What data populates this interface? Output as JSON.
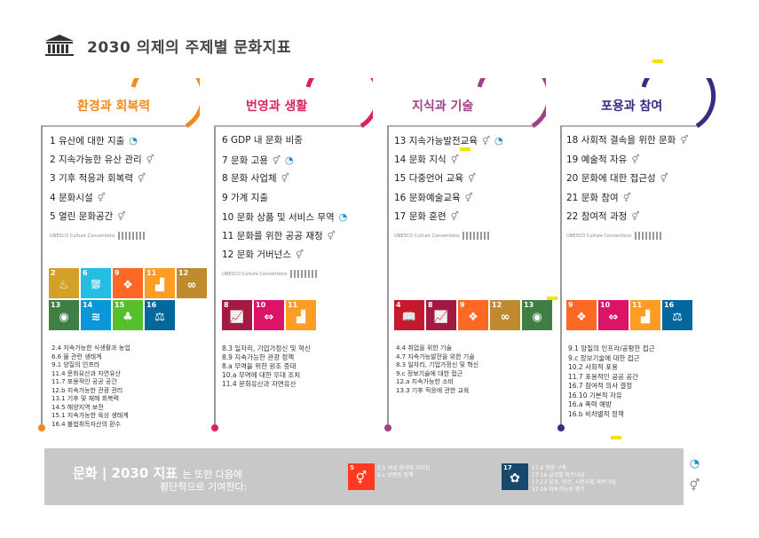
{
  "page": {
    "title": "2030 의제의 주제별 문화지표"
  },
  "colors": {
    "orange": "#f08a1c",
    "red": "#d8245b",
    "purple": "#a23f86",
    "navy": "#3b2a80"
  },
  "unesco_label": "UNESCO Culture Conventions",
  "columns": [
    {
      "title": "환경과 회복력",
      "items": [
        "1 유산에 대한 지출",
        "2 지속가능한 유산 관리",
        "3 기후 적응과 회복력",
        "4 문화시설",
        "5 열린 문화공간"
      ],
      "sdgs": [
        "2",
        "6",
        "9",
        "11",
        "12",
        "13",
        "14",
        "15",
        "16"
      ],
      "targets": [
        "2.4 지속가능한 식생활과 농업",
        "6.6 물 관련 생태계",
        "9.1 양질의 인프라",
        "11.4 문화유산과 자연유산",
        "11.7 포용적인 공공 공간",
        "12.b 지속가능한 관광 관리",
        "13.1 기후 및 재해 회복력",
        "14.5 해양지역 보전",
        "15.1 지속가능한 육상 생태계",
        "16.4 불법취득자산의 환수"
      ]
    },
    {
      "title": "번영과 생활",
      "items": [
        "6  GDP 내 문화 비중",
        "7 문화 고용",
        "8 문화 사업체",
        "9 가계 지출",
        "10 문화 상품 및 서비스 무역",
        "11 문화를 위한 공공 재정",
        "12 문화 거버넌스"
      ],
      "sdgs": [
        "8",
        "10",
        "11"
      ],
      "targets": [
        "8.3 일자리, 기업가정신 및 혁신",
        "8.9 지속가능한 관광 정책",
        "8.a 무역을 위한 원조 증대",
        "10.a 무역에 대한 우대 조치",
        "11.4 문화유산과 자연유산"
      ]
    },
    {
      "title": "지식과 기술",
      "items": [
        "13  지속가능발전교육",
        "14 문화 지식",
        "15 다중언어 교육",
        "16 문화예술교육",
        "17 문화 훈련"
      ],
      "sdgs": [
        "4",
        "8",
        "9",
        "12",
        "13"
      ],
      "targets": [
        "4.4 취업을 위한 기술",
        "4.7 지속가능발전을 위한 기술",
        "8.3 일자리, 기업가정신 및 혁신",
        "9.c 정보기술에 대한 접근",
        "12.a 지속가능한 소비",
        "13.3 기후 적응에 관한 교육"
      ]
    },
    {
      "title": "포용과 참여",
      "items": [
        "18  사회적 결속을 위한 문화",
        "19 예술적 자유",
        "20 문화에 대한 접근성",
        "21 문화 참여",
        "22 참여적 과정"
      ],
      "sdgs": [
        "9",
        "10",
        "11",
        "16"
      ],
      "targets": [
        "9.1 양질의 인프라/공평한 접근",
        "9.c 정보기술에 대한 접근",
        "10.2 사회적 포용",
        "11.7 포용적인 공공 공간",
        "16.7 참여적 의사 결정",
        "16.10 기본적 자유",
        "16.a 폭력 예방",
        "16.b 비차별적 정책"
      ]
    }
  ],
  "footer": {
    "main": "문화 | 2030 지표",
    "main_tail": "는 또한 다음에",
    "sub": "횡단적으로 기여한다:",
    "sdg5_targets": [
      "5.5 여성 참여와 리더십",
      "5.c 성평등 정책"
    ],
    "sdg17_targets": [
      "17.9 역량 구축",
      "17.14 글로벌 파트너십",
      "17.17 공공, 민간, 시민사회 파트너십",
      "17.19 지속가능성 평가"
    ]
  }
}
